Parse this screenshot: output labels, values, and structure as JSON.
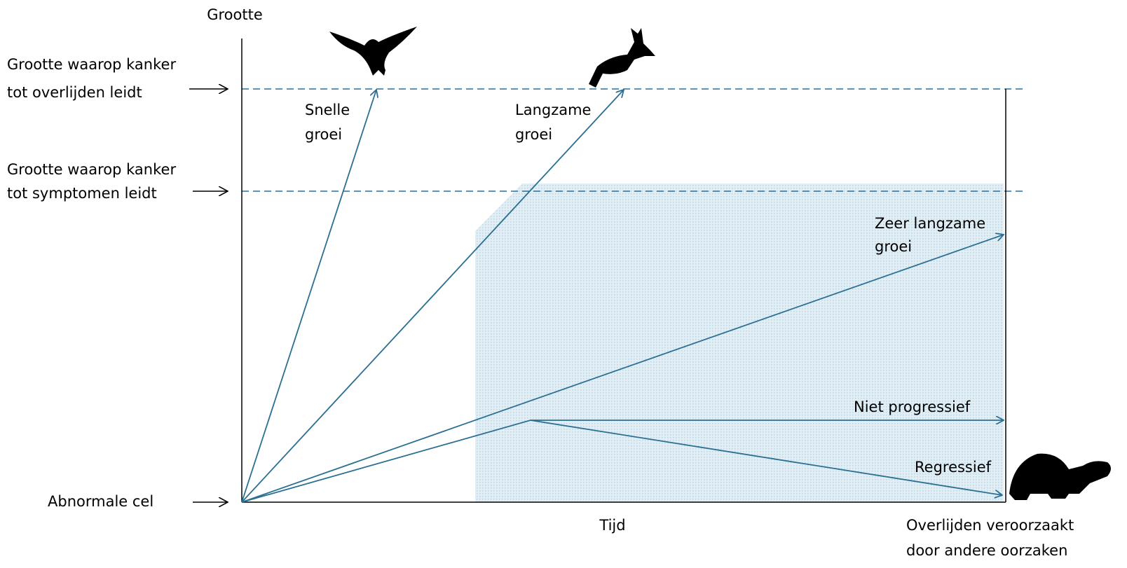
{
  "y_axis_label": "Grootte",
  "x_axis_label": "Tijd",
  "levels": [
    {
      "lines": [
        "Grootte waarop kanker",
        "tot overlijden leidt"
      ]
    },
    {
      "lines": [
        "Grootte waarop kanker",
        "tot symptomen leidt"
      ]
    },
    {
      "lines": [
        "Abnormale cel"
      ]
    }
  ],
  "paths": [
    {
      "lines": [
        "Snelle",
        "groei"
      ]
    },
    {
      "lines": [
        "Langzame",
        "groei"
      ]
    },
    {
      "lines": [
        "Zeer langzame",
        "groei"
      ]
    },
    {
      "lines": [
        "Niet progressief"
      ]
    },
    {
      "lines": [
        "Regressief"
      ]
    }
  ],
  "death_note": {
    "lines": [
      "Overlijden veroorzaakt",
      "door andere oorzaken"
    ]
  }
}
